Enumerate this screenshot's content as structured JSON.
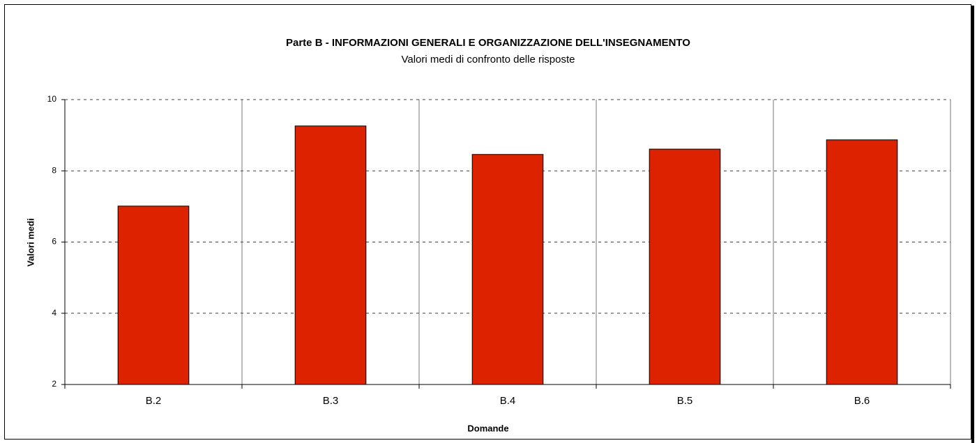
{
  "chart_data": {
    "type": "bar",
    "title": "Parte B - INFORMAZIONI GENERALI E ORGANIZZAZIONE DELL'INSEGNAMENTO",
    "subtitle": "Valori medi di confronto delle risposte",
    "x_label": "Domande",
    "y_label": "Valori medi",
    "categories": [
      "B.2",
      "B.3",
      "B.4",
      "B.5",
      "B.6"
    ],
    "values": [
      7.01,
      9.26,
      8.46,
      8.61,
      8.87
    ],
    "color": "#dd2200",
    "ylim": [
      2,
      10
    ],
    "yticks": [
      2,
      4,
      6,
      8,
      10
    ],
    "grid": true
  }
}
